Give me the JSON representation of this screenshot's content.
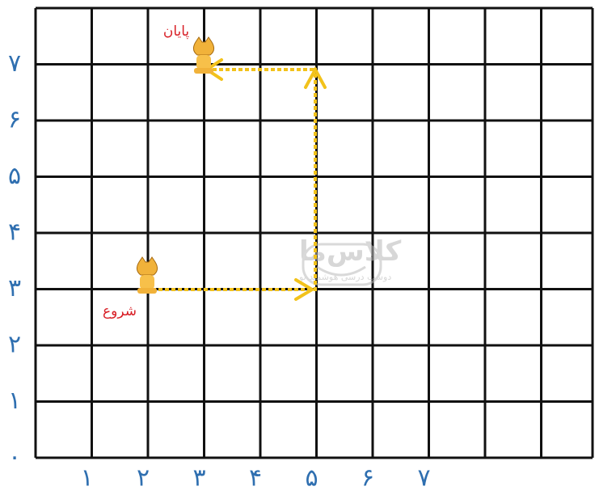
{
  "axes": {
    "x_labels": [
      "۱",
      "۲",
      "۳",
      "۴",
      "۵",
      "۶",
      "۷"
    ],
    "y_labels": [
      "۰",
      "۱",
      "۲",
      "۳",
      "۴",
      "۵",
      "۶",
      "۷"
    ]
  },
  "labels": {
    "start": "شروع",
    "end": "پایان"
  },
  "watermark": {
    "brand": "کلاس‌ما",
    "slogan": "دوست درسی هوشمند تو"
  }
}
